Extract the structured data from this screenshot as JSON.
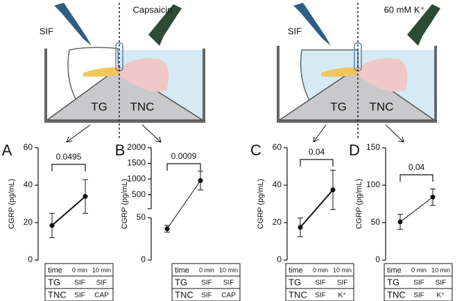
{
  "diagrams": [
    {
      "left_reagent": "SIF",
      "right_reagent": "Capsaicin",
      "left_region": "TG",
      "right_region": "TNC"
    },
    {
      "left_reagent": "SIF",
      "right_reagent": "60 mM K⁺",
      "left_region": "TG",
      "right_region": "TNC"
    }
  ],
  "chart_data": [
    {
      "type": "line",
      "panel_label": "A",
      "ylabel": "CGRP (pg/mL)",
      "values": [
        18.5,
        34
      ],
      "errors": [
        6.5,
        9
      ],
      "significance": "0.0495",
      "ylim": [
        0,
        60
      ],
      "yticks": [
        0,
        20,
        40,
        60
      ],
      "table": [
        [
          "time",
          "0 min",
          "10 min"
        ],
        [
          "TG",
          "SIF",
          "SIF"
        ],
        [
          "TNC",
          "SIF",
          "CAP"
        ]
      ]
    },
    {
      "type": "line",
      "panel_label": "B",
      "ylabel": "CGRP (pg/mL)",
      "values": [
        37,
        950
      ],
      "errors": [
        4,
        300
      ],
      "significance": "0.0009",
      "ylim": [
        0,
        2000
      ],
      "ylim_segments": [
        [
          0,
          50
        ],
        [
          50,
          2000
        ]
      ],
      "yticks": [
        0,
        50,
        500,
        1000,
        1500,
        2000
      ],
      "table": [
        [
          "time",
          "0 min",
          "10 min"
        ],
        [
          "TG",
          "SIF",
          "SIF"
        ],
        [
          "TNC",
          "SIF",
          "CAP"
        ]
      ]
    },
    {
      "type": "line",
      "panel_label": "C",
      "ylabel": "CGRP (pg/mL)",
      "values": [
        17.5,
        37.5
      ],
      "errors": [
        5,
        10.5
      ],
      "significance": "0.04",
      "ylim": [
        0,
        60
      ],
      "yticks": [
        0,
        20,
        40,
        60
      ],
      "table": [
        [
          "time",
          "0 min",
          "10 min"
        ],
        [
          "TG",
          "SIF",
          "SIF"
        ],
        [
          "TNC",
          "SIF",
          "K⁺"
        ]
      ]
    },
    {
      "type": "line",
      "panel_label": "D",
      "ylabel": "CGRP (pg/mL)",
      "values": [
        51,
        84
      ],
      "errors": [
        10,
        11
      ],
      "significance": "0.04",
      "ylim": [
        0,
        150
      ],
      "yticks": [
        0,
        50,
        100,
        150
      ],
      "table": [
        [
          "time",
          "0 min",
          "10 min"
        ],
        [
          "TG",
          "SIF",
          "SIF"
        ],
        [
          "TNC",
          "SIF",
          "K⁺"
        ]
      ]
    }
  ]
}
